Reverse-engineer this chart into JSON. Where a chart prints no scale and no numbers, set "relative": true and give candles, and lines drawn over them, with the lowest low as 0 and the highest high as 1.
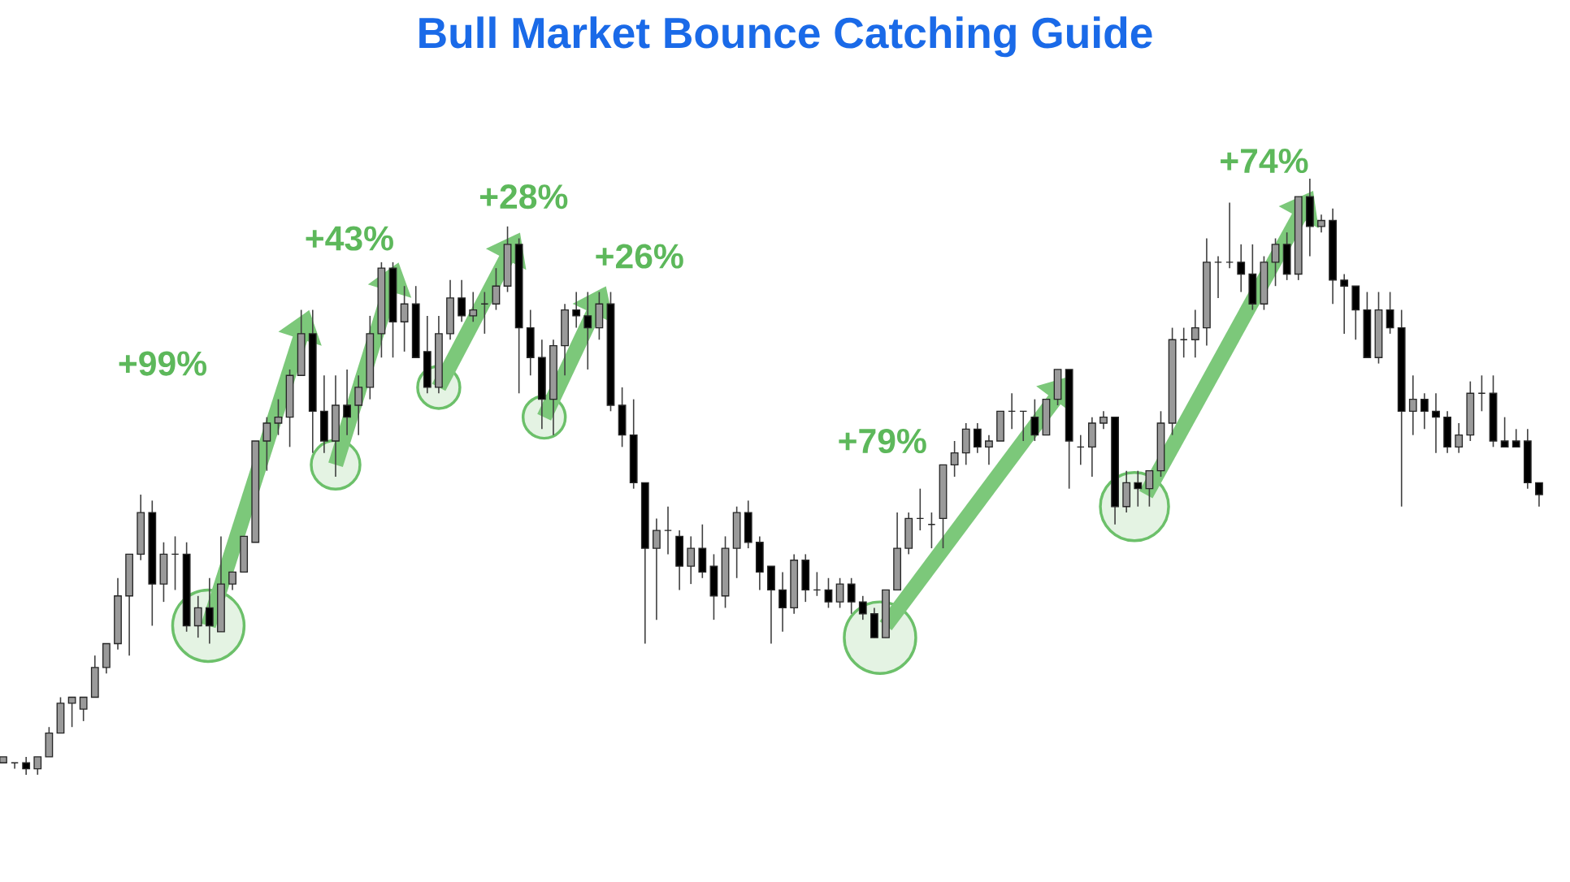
{
  "chart_data": {
    "type": "candlestick",
    "title": "Bull Market Bounce Catching Guide",
    "relative": true,
    "tick_labels": false,
    "categories": [
      null,
      null,
      null,
      null,
      null,
      null,
      null,
      null,
      null,
      null,
      null,
      null,
      null,
      null,
      null,
      null,
      null,
      null,
      null,
      null,
      null,
      null,
      null,
      null,
      null,
      null,
      null,
      null,
      null,
      null,
      null,
      null,
      null,
      null,
      null,
      null,
      null,
      null,
      null,
      null,
      null,
      null,
      null,
      null,
      null,
      null,
      null,
      null,
      null,
      null,
      null,
      null,
      null,
      null,
      null,
      null,
      null,
      null,
      null,
      null,
      null,
      null,
      null,
      null,
      null,
      null,
      null,
      null,
      null,
      null,
      null,
      null,
      null,
      null,
      null,
      null,
      null,
      null,
      null,
      null,
      null,
      null,
      null,
      null,
      null,
      null,
      null,
      null,
      null,
      null,
      null,
      null,
      null,
      null,
      null,
      null,
      null,
      null,
      null,
      null,
      null,
      null,
      null,
      null,
      null,
      null,
      null,
      null,
      null,
      null,
      null,
      null,
      null,
      null,
      null,
      null,
      null,
      null,
      null,
      null,
      null,
      null,
      null,
      null,
      null,
      null,
      null,
      null,
      null,
      null,
      null,
      null,
      null,
      null,
      null
    ],
    "ohlc": [
      [
        0.02,
        0.03,
        0.02,
        0.03
      ],
      [
        0.02,
        0.02,
        0.01,
        0.02
      ],
      [
        0.02,
        0.03,
        0,
        0.01
      ],
      [
        0.01,
        0.03,
        0,
        0.03
      ],
      [
        0.03,
        0.08,
        0.03,
        0.07
      ],
      [
        0.07,
        0.13,
        0.07,
        0.12
      ],
      [
        0.12,
        0.13,
        0.08,
        0.13
      ],
      [
        0.11,
        0.13,
        0.09,
        0.13
      ],
      [
        0.13,
        0.2,
        0.13,
        0.18
      ],
      [
        0.18,
        0.22,
        0.17,
        0.22
      ],
      [
        0.22,
        0.33,
        0.21,
        0.3
      ],
      [
        0.3,
        0.37,
        0.2,
        0.37
      ],
      [
        0.37,
        0.47,
        0.36,
        0.44
      ],
      [
        0.44,
        0.46,
        0.25,
        0.32
      ],
      [
        0.32,
        0.39,
        0.29,
        0.37
      ],
      [
        0.37,
        0.4,
        0.31,
        0.37
      ],
      [
        0.37,
        0.39,
        0.24,
        0.25
      ],
      [
        0.25,
        0.3,
        0.23,
        0.28
      ],
      [
        0.28,
        0.33,
        0.22,
        0.25
      ],
      [
        0.24,
        0.4,
        0.24,
        0.32
      ],
      [
        0.32,
        0.34,
        0.31,
        0.34
      ],
      [
        0.34,
        0.4,
        0.34,
        0.4
      ],
      [
        0.39,
        0.56,
        0.39,
        0.56
      ],
      [
        0.56,
        0.6,
        0.51,
        0.59
      ],
      [
        0.59,
        0.63,
        0.57,
        0.6
      ],
      [
        0.6,
        0.68,
        0.55,
        0.67
      ],
      [
        0.67,
        0.78,
        0.67,
        0.74
      ],
      [
        0.74,
        0.78,
        0.54,
        0.61
      ],
      [
        0.61,
        0.67,
        0.54,
        0.56
      ],
      [
        0.56,
        0.67,
        0.5,
        0.62
      ],
      [
        0.62,
        0.68,
        0.57,
        0.6
      ],
      [
        0.62,
        0.67,
        0.57,
        0.65
      ],
      [
        0.65,
        0.77,
        0.63,
        0.74
      ],
      [
        0.74,
        0.86,
        0.7,
        0.85
      ],
      [
        0.85,
        0.86,
        0.7,
        0.76
      ],
      [
        0.76,
        0.82,
        0.71,
        0.79
      ],
      [
        0.79,
        0.82,
        0.7,
        0.7
      ],
      [
        0.71,
        0.77,
        0.64,
        0.65
      ],
      [
        0.65,
        0.77,
        0.64,
        0.74
      ],
      [
        0.74,
        0.83,
        0.73,
        0.8
      ],
      [
        0.8,
        0.83,
        0.76,
        0.77
      ],
      [
        0.77,
        0.81,
        0.76,
        0.78
      ],
      [
        0.79,
        0.81,
        0.74,
        0.79
      ],
      [
        0.79,
        0.85,
        0.78,
        0.82
      ],
      [
        0.82,
        0.92,
        0.81,
        0.89
      ],
      [
        0.89,
        0.9,
        0.64,
        0.75
      ],
      [
        0.75,
        0.78,
        0.67,
        0.7
      ],
      [
        0.7,
        0.73,
        0.58,
        0.63
      ],
      [
        0.63,
        0.73,
        0.57,
        0.72
      ],
      [
        0.72,
        0.79,
        0.67,
        0.78
      ],
      [
        0.78,
        0.81,
        0.75,
        0.77
      ],
      [
        0.77,
        0.81,
        0.68,
        0.75
      ],
      [
        0.75,
        0.81,
        0.73,
        0.79
      ],
      [
        0.79,
        0.81,
        0.61,
        0.62
      ],
      [
        0.62,
        0.65,
        0.55,
        0.57
      ],
      [
        0.57,
        0.63,
        0.48,
        0.49
      ],
      [
        0.49,
        0.49,
        0.22,
        0.38
      ],
      [
        0.38,
        0.43,
        0.26,
        0.41
      ],
      [
        0.41,
        0.45,
        0.37,
        0.41
      ],
      [
        0.4,
        0.41,
        0.31,
        0.35
      ],
      [
        0.35,
        0.4,
        0.32,
        0.38
      ],
      [
        0.38,
        0.42,
        0.33,
        0.34
      ],
      [
        0.35,
        0.37,
        0.26,
        0.3
      ],
      [
        0.3,
        0.4,
        0.28,
        0.38
      ],
      [
        0.38,
        0.45,
        0.33,
        0.44
      ],
      [
        0.44,
        0.46,
        0.38,
        0.39
      ],
      [
        0.39,
        0.4,
        0.31,
        0.34
      ],
      [
        0.35,
        0.35,
        0.22,
        0.31
      ],
      [
        0.31,
        0.34,
        0.24,
        0.28
      ],
      [
        0.28,
        0.37,
        0.27,
        0.36
      ],
      [
        0.36,
        0.37,
        0.29,
        0.31
      ],
      [
        0.31,
        0.34,
        0.3,
        0.31
      ],
      [
        0.31,
        0.33,
        0.28,
        0.29
      ],
      [
        0.29,
        0.33,
        0.28,
        0.32
      ],
      [
        0.32,
        0.33,
        0.27,
        0.29
      ],
      [
        0.29,
        0.3,
        0.26,
        0.27
      ],
      [
        0.27,
        0.28,
        0.23,
        0.23
      ],
      [
        0.23,
        0.31,
        0.23,
        0.31
      ],
      [
        0.31,
        0.44,
        0.31,
        0.38
      ],
      [
        0.38,
        0.44,
        0.37,
        0.43
      ],
      [
        0.43,
        0.48,
        0.41,
        0.43
      ],
      [
        0.42,
        0.44,
        0.38,
        0.42
      ],
      [
        0.43,
        0.52,
        0.38,
        0.52
      ],
      [
        0.52,
        0.56,
        0.5,
        0.54
      ],
      [
        0.54,
        0.59,
        0.52,
        0.58
      ],
      [
        0.58,
        0.59,
        0.54,
        0.55
      ],
      [
        0.55,
        0.57,
        0.52,
        0.56
      ],
      [
        0.56,
        0.61,
        0.56,
        0.61
      ],
      [
        0.61,
        0.64,
        0.58,
        0.61
      ],
      [
        0.61,
        0.61,
        0.56,
        0.61
      ],
      [
        0.6,
        0.63,
        0.56,
        0.57
      ],
      [
        0.57,
        0.63,
        0.57,
        0.63
      ],
      [
        0.63,
        0.68,
        0.62,
        0.68
      ],
      [
        0.68,
        0.68,
        0.48,
        0.56
      ],
      [
        0.55,
        0.57,
        0.52,
        0.55
      ],
      [
        0.55,
        0.6,
        0.5,
        0.59
      ],
      [
        0.59,
        0.61,
        0.58,
        0.6
      ],
      [
        0.6,
        0.6,
        0.42,
        0.45
      ],
      [
        0.45,
        0.51,
        0.44,
        0.49
      ],
      [
        0.49,
        0.51,
        0.45,
        0.48
      ],
      [
        0.48,
        0.51,
        0.45,
        0.51
      ],
      [
        0.51,
        0.61,
        0.5,
        0.59
      ],
      [
        0.59,
        0.75,
        0.57,
        0.73
      ],
      [
        0.73,
        0.75,
        0.7,
        0.73
      ],
      [
        0.73,
        0.78,
        0.7,
        0.75
      ],
      [
        0.75,
        0.9,
        0.72,
        0.86
      ],
      [
        0.86,
        0.87,
        0.8,
        0.86
      ],
      [
        0.86,
        0.96,
        0.85,
        0.86
      ],
      [
        0.86,
        0.89,
        0.81,
        0.84
      ],
      [
        0.84,
        0.89,
        0.78,
        0.79
      ],
      [
        0.79,
        0.87,
        0.78,
        0.86
      ],
      [
        0.86,
        0.9,
        0.82,
        0.89
      ],
      [
        0.89,
        0.91,
        0.83,
        0.84
      ],
      [
        0.84,
        0.97,
        0.83,
        0.97
      ],
      [
        0.97,
        1,
        0.87,
        0.92
      ],
      [
        0.92,
        0.94,
        0.91,
        0.93
      ],
      [
        0.93,
        0.95,
        0.79,
        0.83
      ],
      [
        0.83,
        0.84,
        0.74,
        0.82
      ],
      [
        0.82,
        0.82,
        0.73,
        0.78
      ],
      [
        0.78,
        0.81,
        0.7,
        0.7
      ],
      [
        0.7,
        0.81,
        0.69,
        0.78
      ],
      [
        0.78,
        0.81,
        0.74,
        0.75
      ],
      [
        0.75,
        0.78,
        0.45,
        0.61
      ],
      [
        0.61,
        0.67,
        0.57,
        0.63
      ],
      [
        0.63,
        0.64,
        0.58,
        0.61
      ],
      [
        0.61,
        0.64,
        0.54,
        0.6
      ],
      [
        0.6,
        0.61,
        0.54,
        0.55
      ],
      [
        0.55,
        0.59,
        0.54,
        0.57
      ],
      [
        0.57,
        0.66,
        0.56,
        0.64
      ],
      [
        0.64,
        0.67,
        0.61,
        0.64
      ],
      [
        0.64,
        0.67,
        0.55,
        0.56
      ],
      [
        0.56,
        0.6,
        0.55,
        0.55
      ],
      [
        0.56,
        0.58,
        0.55,
        0.55
      ],
      [
        0.56,
        0.58,
        0.48,
        0.49
      ],
      [
        0.49,
        0.49,
        0.45,
        0.47
      ]
    ],
    "annotations": [
      "+99%",
      "+43%",
      "+28%",
      "+26%",
      "+79%",
      "+74%"
    ]
  }
}
